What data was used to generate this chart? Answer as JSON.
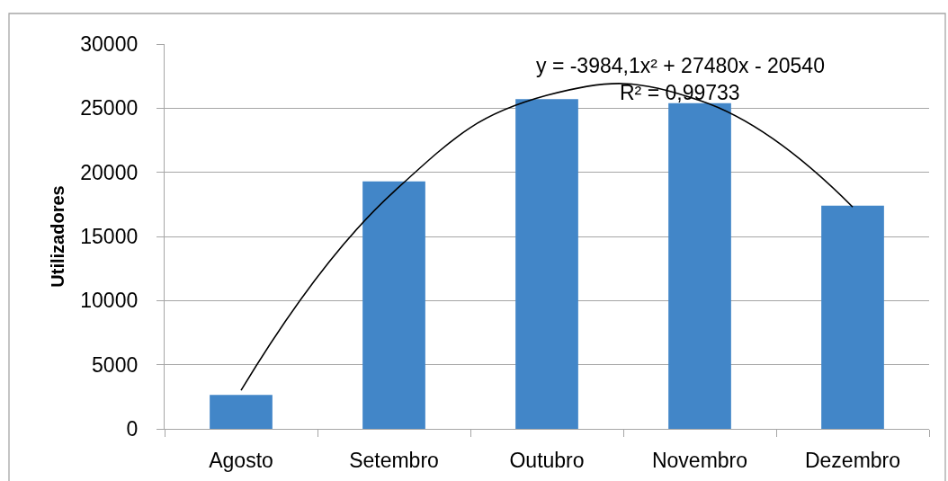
{
  "chart_data": {
    "type": "bar",
    "categories": [
      "Agosto",
      "Setembro",
      "Outubro",
      "Novembro",
      "Dezembro"
    ],
    "ylabel": "Utilizadores",
    "ylim": [
      0,
      30000
    ],
    "yticks": [
      0,
      5000,
      10000,
      15000,
      20000,
      25000,
      30000
    ],
    "grid": "y",
    "series": [
      {
        "color": "#4286c8",
        "values": [
          2650,
          19300,
          25700,
          25400,
          17400
        ]
      },
      {
        "type": "line",
        "color": "#000000",
        "values": [
          3000,
          18500,
          26000,
          25600,
          17300
        ]
      }
    ],
    "annotations": [
      "y = -3984,1x² + 27480x - 20540",
      "R² = 0,99733"
    ]
  }
}
